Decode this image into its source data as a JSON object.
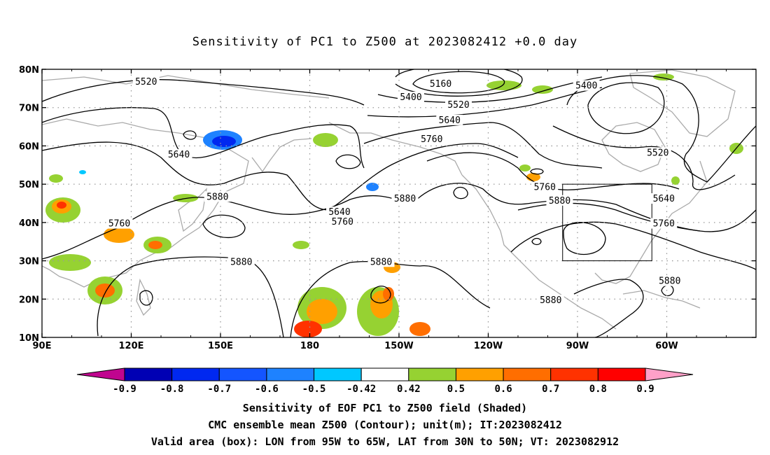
{
  "title": "Sensitivity of PC1 to Z500 at 2023082412 +0.0 day",
  "map": {
    "lat_labels": [
      "80N",
      "70N",
      "60N",
      "50N",
      "40N",
      "30N",
      "20N",
      "10N"
    ],
    "lon_labels": [
      "90E",
      "120E",
      "150E",
      "180",
      "150W",
      "120W",
      "90W",
      "60W"
    ],
    "contour_labels": [
      {
        "text": "5520",
        "lon": 125,
        "lat": 76.5
      },
      {
        "text": "5160",
        "lon": 224,
        "lat": 76
      },
      {
        "text": "5400",
        "lon": 214,
        "lat": 72.5
      },
      {
        "text": "5520",
        "lon": 230,
        "lat": 70.5
      },
      {
        "text": "5640",
        "lon": 227,
        "lat": 66.5
      },
      {
        "text": "5400",
        "lon": 273,
        "lat": 75.5
      },
      {
        "text": "5760",
        "lon": 221,
        "lat": 61.5
      },
      {
        "text": "5640",
        "lon": 136,
        "lat": 57.5
      },
      {
        "text": "5520",
        "lon": 297,
        "lat": 58
      },
      {
        "text": "5880",
        "lon": 149,
        "lat": 46.5
      },
      {
        "text": "5880",
        "lon": 212,
        "lat": 46
      },
      {
        "text": "5760",
        "lon": 259,
        "lat": 49
      },
      {
        "text": "5880",
        "lon": 264,
        "lat": 45.5
      },
      {
        "text": "5640",
        "lon": 299,
        "lat": 46
      },
      {
        "text": "5640",
        "lon": 190,
        "lat": 42.5
      },
      {
        "text": "5760",
        "lon": 191,
        "lat": 40
      },
      {
        "text": "5760",
        "lon": 116,
        "lat": 39.5
      },
      {
        "text": "5760",
        "lon": 299,
        "lat": 39.5
      },
      {
        "text": "5880",
        "lon": 157,
        "lat": 29.5
      },
      {
        "text": "5880",
        "lon": 204,
        "lat": 29.5
      },
      {
        "text": "5880",
        "lon": 301,
        "lat": 24.5
      },
      {
        "text": "5880",
        "lon": 261,
        "lat": 19.5
      }
    ],
    "valid_box": {
      "lon_min": 265,
      "lon_max": 295,
      "lat_min": 30,
      "lat_max": 50
    }
  },
  "colorbar": {
    "colors": [
      "#c0058f",
      "#0000b4",
      "#0028f0",
      "#1455ff",
      "#1e82ff",
      "#00c8ff",
      "#ffffff",
      "#96d232",
      "#ffa000",
      "#ff6e00",
      "#ff3200",
      "#ff0000",
      "#ffa0c8"
    ],
    "labels": [
      "-0.9",
      "-0.8",
      "-0.7",
      "-0.6",
      "-0.5",
      "-0.42",
      "0.42",
      "0.5",
      "0.6",
      "0.7",
      "0.8",
      "0.9"
    ]
  },
  "caption": {
    "line1": "Sensitivity of EOF PC1 to Z500 field (Shaded)",
    "line2": "CMC ensemble mean Z500 (Contour); unit(m); IT:2023082412",
    "line3": "Valid area (box): LON from 95W to 65W, LAT from 30N to 50N; VT: 2023082912"
  }
}
